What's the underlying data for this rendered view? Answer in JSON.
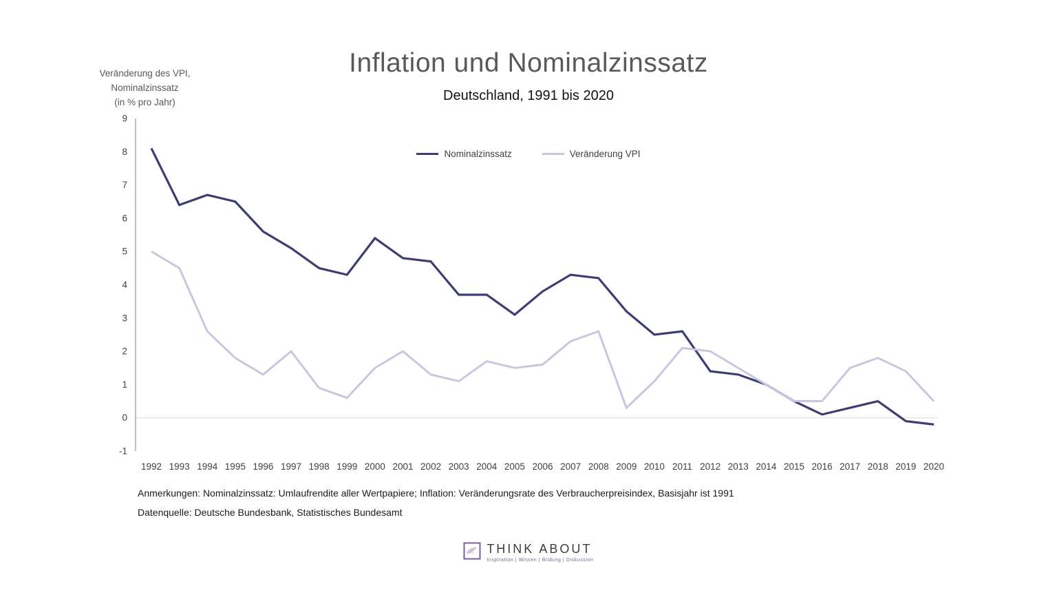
{
  "chart_data": {
    "type": "line",
    "title": "Inflation und Nominalzinssatz",
    "subtitle": "Deutschland, 1991 bis 2020",
    "ylabel_lines": [
      "Veränderung des VPI,",
      "Nominalzinssatz",
      "(in % pro Jahr)"
    ],
    "x": [
      1992,
      1993,
      1994,
      1995,
      1996,
      1997,
      1998,
      1999,
      2000,
      2001,
      2002,
      2003,
      2004,
      2005,
      2006,
      2007,
      2008,
      2009,
      2010,
      2011,
      2012,
      2013,
      2014,
      2015,
      2016,
      2017,
      2018,
      2019,
      2020
    ],
    "series": [
      {
        "name": "Nominalzinssatz",
        "color": "#3d3d73",
        "width": 3.2,
        "values": [
          8.1,
          6.4,
          6.7,
          6.5,
          5.6,
          5.1,
          4.5,
          4.3,
          5.4,
          4.8,
          4.7,
          3.7,
          3.7,
          3.1,
          3.8,
          4.3,
          4.2,
          3.2,
          2.5,
          2.6,
          1.4,
          1.3,
          1.0,
          0.5,
          0.1,
          0.3,
          0.5,
          -0.1,
          -0.2
        ]
      },
      {
        "name": "Veränderung VPI",
        "color": "#c7c7e0",
        "width": 3,
        "values": [
          5.0,
          4.5,
          2.6,
          1.8,
          1.3,
          2.0,
          0.9,
          0.6,
          1.5,
          2.0,
          1.3,
          1.1,
          1.7,
          1.5,
          1.6,
          2.3,
          2.6,
          0.3,
          1.1,
          2.1,
          2.0,
          1.5,
          1.0,
          0.5,
          0.5,
          1.5,
          1.8,
          1.4,
          0.5
        ]
      }
    ],
    "ylim": [
      -1,
      9
    ],
    "yticks": [
      9,
      8,
      7,
      6,
      5,
      4,
      3,
      2,
      1,
      0,
      -1
    ],
    "grid": "zero-line-only",
    "legend_position": "top-center"
  },
  "notes": "Anmerkungen: Nominalzinssatz: Umlaufrendite aller Wertpapiere; Inflation: Veränderungsrate des Verbraucherpreisindex, Basisjahr ist 1991",
  "source": "Datenquelle: Deutsche Bundesbank, Statistisches Bundesamt",
  "logo": {
    "name": "THINK ABOUT",
    "tagline": "Inspiration | Wissen | Bildung | Diskussion",
    "accent_color": "#7d5fa0"
  }
}
